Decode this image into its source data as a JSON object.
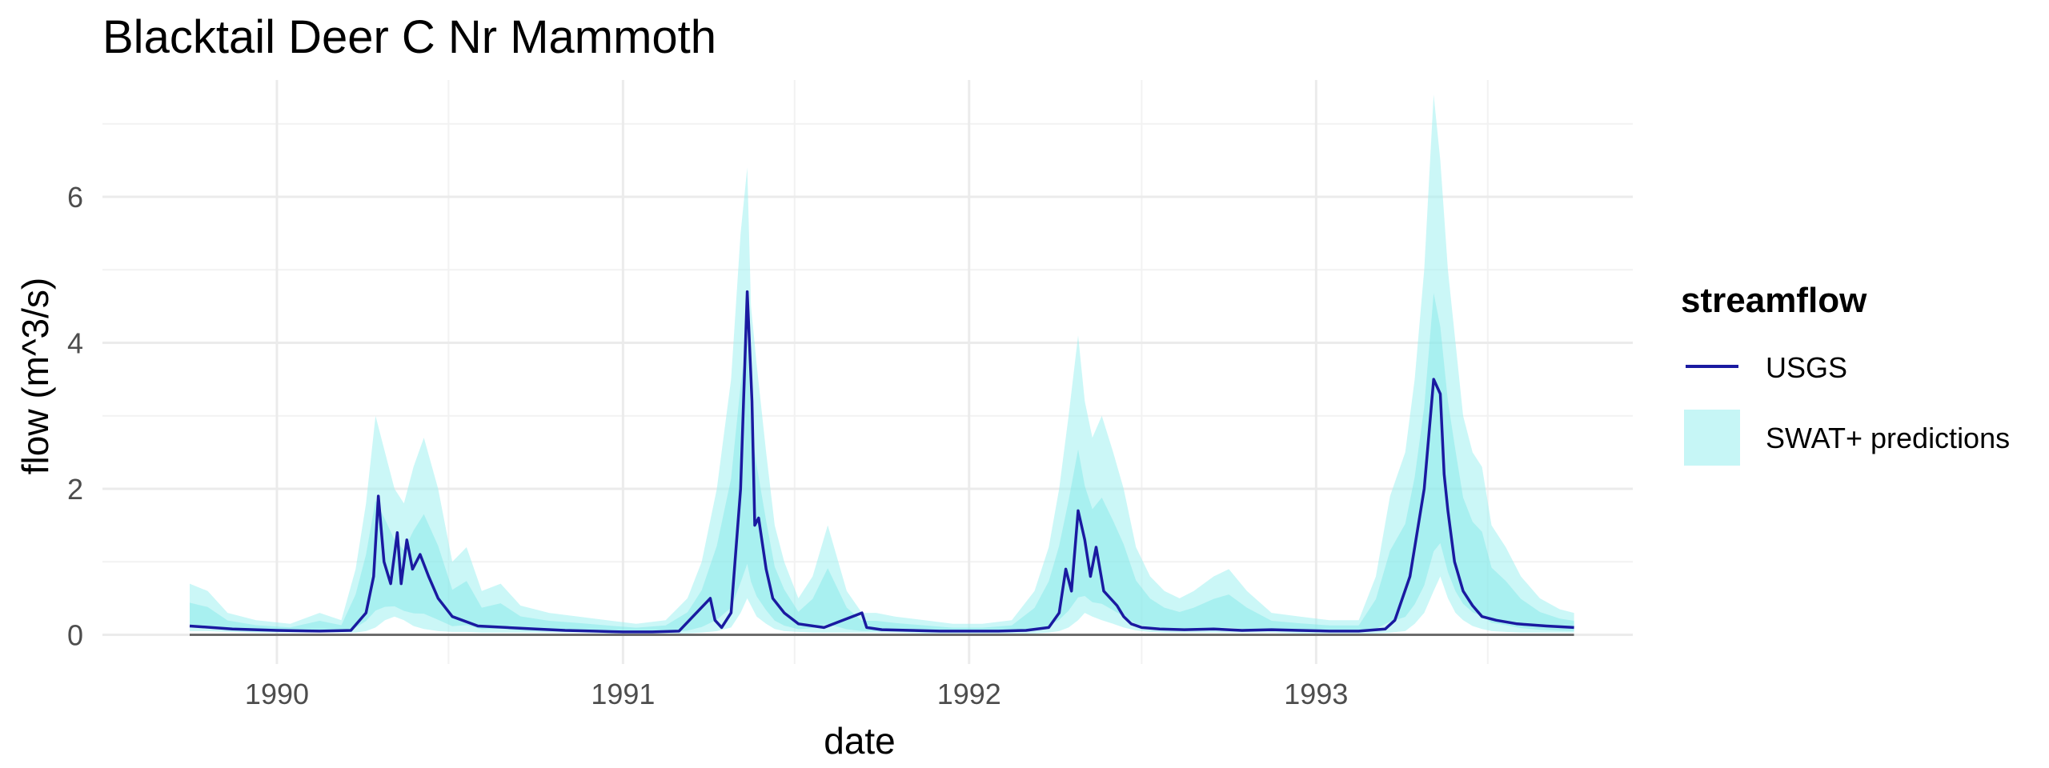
{
  "chart_data": {
    "type": "area",
    "title": "Blacktail Deer C Nr Mammoth",
    "xlabel": "date",
    "ylabel": "flow (m^3/s)",
    "xlim": [
      "1989-07-01",
      "1993-12-01"
    ],
    "ylim": [
      -0.4,
      7.6
    ],
    "x_ticks": [
      "1990",
      "1991",
      "1992",
      "1993"
    ],
    "y_ticks": [
      0,
      2,
      4,
      6
    ],
    "grid": true,
    "legend": {
      "title": "streamflow",
      "position": "right",
      "entries": [
        {
          "label": "USGS",
          "kind": "line",
          "color": "#1a1aa0"
        },
        {
          "label": "SWAT+ predictions",
          "kind": "area",
          "color": "#a0f0f0"
        }
      ]
    },
    "series": [
      {
        "name": "USGS",
        "kind": "line",
        "color": "#1a1aa0",
        "x": [
          "1989-10-01",
          "1989-11-15",
          "1990-01-01",
          "1990-02-15",
          "1990-03-20",
          "1990-04-05",
          "1990-04-13",
          "1990-04-18",
          "1990-04-24",
          "1990-05-01",
          "1990-05-08",
          "1990-05-12",
          "1990-05-18",
          "1990-05-24",
          "1990-06-01",
          "1990-06-10",
          "1990-06-20",
          "1990-07-05",
          "1990-08-01",
          "1990-09-01",
          "1990-10-01",
          "1990-11-01",
          "1990-12-01",
          "1991-01-01",
          "1991-02-01",
          "1991-03-01",
          "1991-04-03",
          "1991-04-08",
          "1991-04-15",
          "1991-04-25",
          "1991-05-05",
          "1991-05-12",
          "1991-05-17",
          "1991-05-20",
          "1991-05-24",
          "1991-06-01",
          "1991-06-08",
          "1991-06-20",
          "1991-07-05",
          "1991-08-01",
          "1991-09-10",
          "1991-09-15",
          "1991-10-01",
          "1991-11-01",
          "1991-12-01",
          "1992-01-01",
          "1992-02-01",
          "1992-03-01",
          "1992-03-25",
          "1992-04-05",
          "1992-04-12",
          "1992-04-18",
          "1992-04-25",
          "1992-05-02",
          "1992-05-08",
          "1992-05-14",
          "1992-05-22",
          "1992-06-05",
          "1992-06-12",
          "1992-06-20",
          "1992-07-01",
          "1992-07-20",
          "1992-08-15",
          "1992-09-15",
          "1992-10-15",
          "1992-11-15",
          "1992-12-15",
          "1993-01-15",
          "1993-02-15",
          "1993-03-15",
          "1993-03-25",
          "1993-04-10",
          "1993-04-25",
          "1993-05-05",
          "1993-05-12",
          "1993-05-16",
          "1993-05-20",
          "1993-05-27",
          "1993-06-05",
          "1993-06-15",
          "1993-06-25",
          "1993-07-10",
          "1993-08-01",
          "1993-09-01",
          "1993-09-30"
        ],
        "values": [
          0.12,
          0.08,
          0.06,
          0.05,
          0.06,
          0.3,
          0.8,
          1.9,
          1.0,
          0.7,
          1.4,
          0.7,
          1.3,
          0.9,
          1.1,
          0.8,
          0.5,
          0.25,
          0.12,
          0.1,
          0.08,
          0.06,
          0.05,
          0.04,
          0.04,
          0.05,
          0.5,
          0.2,
          0.1,
          0.3,
          2.0,
          4.7,
          3.2,
          1.5,
          1.6,
          0.9,
          0.5,
          0.3,
          0.15,
          0.1,
          0.3,
          0.1,
          0.07,
          0.06,
          0.05,
          0.05,
          0.05,
          0.06,
          0.1,
          0.3,
          0.9,
          0.6,
          1.7,
          1.3,
          0.8,
          1.2,
          0.6,
          0.4,
          0.25,
          0.15,
          0.1,
          0.08,
          0.07,
          0.08,
          0.06,
          0.07,
          0.06,
          0.05,
          0.05,
          0.08,
          0.2,
          0.8,
          2.0,
          3.5,
          3.3,
          2.2,
          1.7,
          1.0,
          0.6,
          0.4,
          0.25,
          0.2,
          0.15,
          0.12,
          0.1
        ]
      },
      {
        "name": "SWAT+ predictions",
        "kind": "band",
        "color": "#a0f0f0",
        "x": [
          "1989-10-01",
          "1989-10-20",
          "1989-11-10",
          "1989-12-10",
          "1990-01-15",
          "1990-02-15",
          "1990-03-10",
          "1990-03-25",
          "1990-04-05",
          "1990-04-15",
          "1990-04-25",
          "1990-05-05",
          "1990-05-15",
          "1990-05-25",
          "1990-06-05",
          "1990-06-20",
          "1990-07-05",
          "1990-07-20",
          "1990-08-05",
          "1990-08-25",
          "1990-09-15",
          "1990-10-15",
          "1990-11-15",
          "1990-12-15",
          "1991-01-15",
          "1991-02-15",
          "1991-03-10",
          "1991-03-25",
          "1991-04-10",
          "1991-04-25",
          "1991-05-05",
          "1991-05-12",
          "1991-05-16",
          "1991-05-22",
          "1991-06-01",
          "1991-06-10",
          "1991-06-20",
          "1991-07-05",
          "1991-07-20",
          "1991-08-05",
          "1991-08-25",
          "1991-09-10",
          "1991-09-25",
          "1991-10-15",
          "1991-11-15",
          "1991-12-15",
          "1992-01-15",
          "1992-02-15",
          "1992-03-10",
          "1992-03-25",
          "1992-04-05",
          "1992-04-15",
          "1992-04-25",
          "1992-05-02",
          "1992-05-10",
          "1992-05-20",
          "1992-06-01",
          "1992-06-12",
          "1992-06-25",
          "1992-07-10",
          "1992-07-25",
          "1992-08-10",
          "1992-08-25",
          "1992-09-15",
          "1992-10-01",
          "1992-10-20",
          "1992-11-15",
          "1992-12-15",
          "1993-01-15",
          "1993-02-15",
          "1993-03-05",
          "1993-03-20",
          "1993-04-05",
          "1993-04-15",
          "1993-04-25",
          "1993-05-05",
          "1993-05-12",
          "1993-05-20",
          "1993-05-28",
          "1993-06-05",
          "1993-06-15",
          "1993-06-25",
          "1993-07-05",
          "1993-07-20",
          "1993-08-05",
          "1993-08-25",
          "1993-09-15",
          "1993-09-30"
        ],
        "upper": [
          0.7,
          0.6,
          0.3,
          0.2,
          0.15,
          0.3,
          0.2,
          0.9,
          1.8,
          3.0,
          2.5,
          2.0,
          1.8,
          2.3,
          2.7,
          2.0,
          1.0,
          1.2,
          0.6,
          0.7,
          0.4,
          0.3,
          0.25,
          0.2,
          0.15,
          0.2,
          0.5,
          1.0,
          2.0,
          3.5,
          5.5,
          6.4,
          4.5,
          3.7,
          2.5,
          1.5,
          1.0,
          0.5,
          0.8,
          1.5,
          0.6,
          0.3,
          0.3,
          0.25,
          0.2,
          0.15,
          0.15,
          0.2,
          0.6,
          1.2,
          2.0,
          3.0,
          4.1,
          3.2,
          2.7,
          3.0,
          2.5,
          2.0,
          1.2,
          0.8,
          0.6,
          0.5,
          0.6,
          0.8,
          0.9,
          0.6,
          0.3,
          0.25,
          0.2,
          0.2,
          0.8,
          1.9,
          2.5,
          3.5,
          5.0,
          7.4,
          6.5,
          5.0,
          4.0,
          3.0,
          2.5,
          2.3,
          1.5,
          1.2,
          0.8,
          0.5,
          0.35,
          0.3
        ],
        "lower": [
          0.05,
          0.05,
          0.04,
          0.03,
          0.03,
          0.03,
          0.03,
          0.03,
          0.05,
          0.1,
          0.2,
          0.25,
          0.2,
          0.12,
          0.08,
          0.05,
          0.04,
          0.04,
          0.03,
          0.03,
          0.03,
          0.03,
          0.03,
          0.02,
          0.02,
          0.02,
          0.02,
          0.03,
          0.05,
          0.1,
          0.3,
          0.5,
          0.4,
          0.25,
          0.15,
          0.08,
          0.05,
          0.04,
          0.03,
          0.03,
          0.03,
          0.03,
          0.03,
          0.03,
          0.02,
          0.02,
          0.02,
          0.02,
          0.02,
          0.03,
          0.05,
          0.1,
          0.2,
          0.3,
          0.25,
          0.2,
          0.15,
          0.1,
          0.06,
          0.04,
          0.03,
          0.03,
          0.03,
          0.03,
          0.03,
          0.03,
          0.03,
          0.02,
          0.02,
          0.02,
          0.02,
          0.03,
          0.05,
          0.15,
          0.3,
          0.6,
          0.8,
          0.5,
          0.3,
          0.2,
          0.12,
          0.08,
          0.05,
          0.04,
          0.03,
          0.03,
          0.03,
          0.03
        ]
      }
    ]
  }
}
